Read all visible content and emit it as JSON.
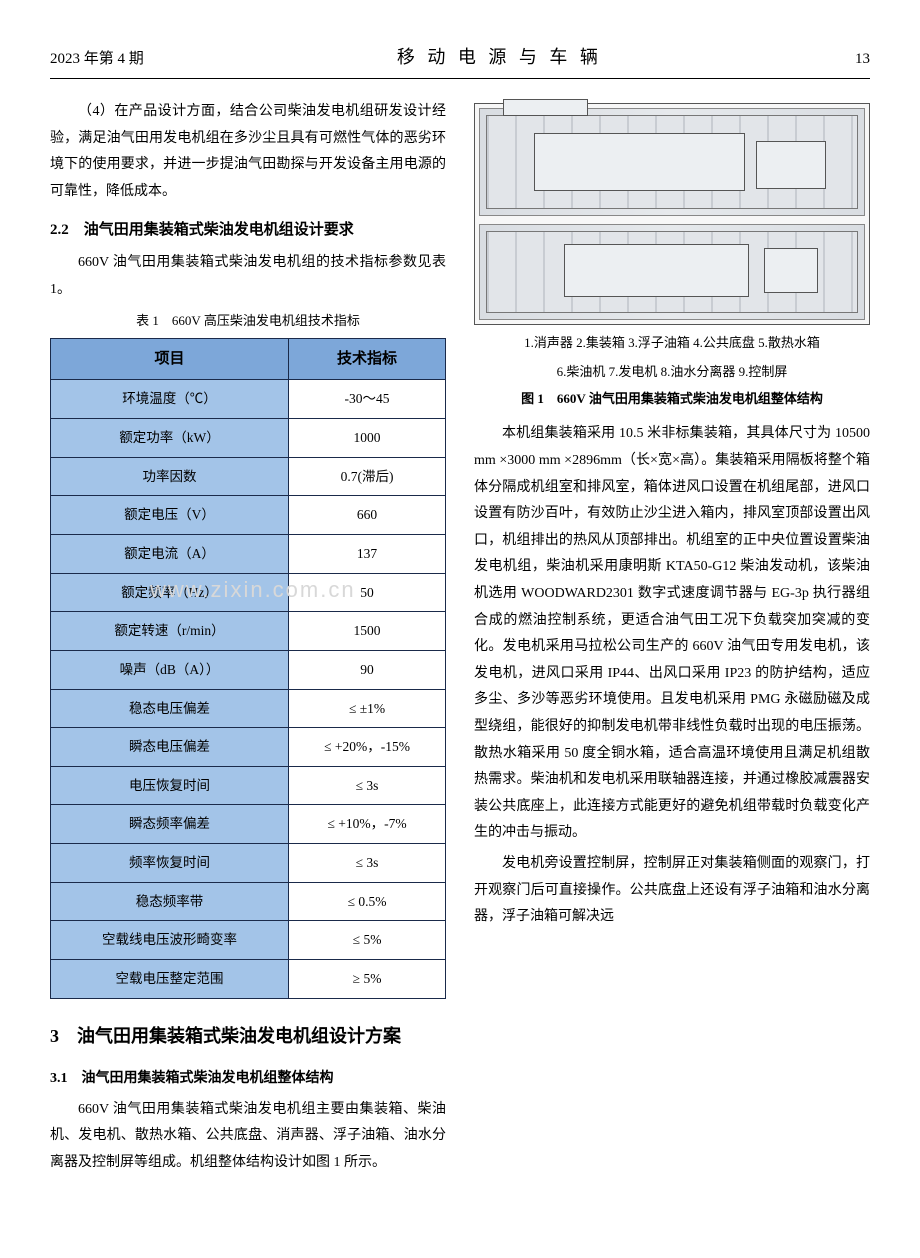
{
  "header": {
    "issue": "2023 年第 4 期",
    "journal": "移 动 电 源 与 车 辆",
    "page": "13"
  },
  "left": {
    "para4": "（4）在产品设计方面，结合公司柴油发电机组研发设计经验，满足油气田用发电机组在多沙尘且具有可燃性气体的恶劣环境下的使用要求，并进一步提油气田勘探与开发设备主用电源的可靠性，降低成本。",
    "h22": "2.2　油气田用集装箱式柴油发电机组设计要求",
    "para22": "660V 油气田用集装箱式柴油发电机组的技术指标参数见表 1。",
    "tableCaption": "表 1　660V 高压柴油发电机组技术指标",
    "table": {
      "head": [
        "项目",
        "技术指标"
      ],
      "rows": [
        [
          "环境温度（℃）",
          "-30～45"
        ],
        [
          "额定功率（kW）",
          "1000"
        ],
        [
          "功率因数",
          "0.7(滞后)"
        ],
        [
          "额定电压（V）",
          "660"
        ],
        [
          "额定电流（A）",
          "137"
        ],
        [
          "额定频率（Hz）",
          "50"
        ],
        [
          "额定转速（r/min）",
          "1500"
        ],
        [
          "噪声（dB（A））",
          "90"
        ],
        [
          "稳态电压偏差",
          "≤ ±1%"
        ],
        [
          "瞬态电压偏差",
          "≤ +20%，-15%"
        ],
        [
          "电压恢复时间",
          "≤ 3s"
        ],
        [
          "瞬态频率偏差",
          "≤ +10%，-7%"
        ],
        [
          "频率恢复时间",
          "≤ 3s"
        ],
        [
          "稳态频率带",
          "≤ 0.5%"
        ],
        [
          "空载线电压波形畸变率",
          "≤ 5%"
        ],
        [
          "空载电压整定范围",
          "≥ 5%"
        ]
      ],
      "headerBg": "#7da7d9",
      "labelBg": "#a3c4e8",
      "valueBg": "#ffffff",
      "borderColor": "#1a2a4a"
    },
    "h3": "3　油气田用集装箱式柴油发电机组设计方案",
    "h31": "3.1　油气田用集装箱式柴油发电机组整体结构",
    "para31": "660V 油气田用集装箱式柴油发电机组主要由集装箱、柴油机、发电机、散热水箱、公共底盘、消声器、浮子油箱、油水分离器及控制屏等组成。机组整体结构设计如图 1 所示。",
    "watermark": "www.zixin.com.cn"
  },
  "right": {
    "figLegend1": "1.消声器  2.集装箱  3.浮子油箱  4.公共底盘  5.散热水箱",
    "figLegend2": "6.柴油机  7.发电机  8.油水分离器  9.控制屏",
    "figCaption": "图 1　660V 油气田用集装箱式柴油发电机组整体结构",
    "paraA": "本机组集装箱采用 10.5 米非标集装箱，其具体尺寸为 10500 mm ×3000 mm ×2896mm（长×宽×高）。集装箱采用隔板将整个箱体分隔成机组室和排风室，箱体进风口设置在机组尾部，进风口设置有防沙百叶，有效防止沙尘进入箱内，排风室顶部设置出风口，机组排出的热风从顶部排出。机组室的正中央位置设置柴油发电机组，柴油机采用康明斯 KTA50-G12 柴油发动机，该柴油机选用 WOODWARD2301 数字式速度调节器与 EG-3p 执行器组合成的燃油控制系统，更适合油气田工况下负载突加突减的变化。发电机采用马拉松公司生产的 660V 油气田专用发电机，该发电机，进风口采用 IP44、出风口采用 IP23 的防护结构，适应多尘、多沙等恶劣环境使用。且发电机采用 PMG 永磁励磁及成型绕组，能很好的抑制发电机带非线性负载时出现的电压振荡。散热水箱采用 50 度全铜水箱，适合高温环境使用且满足机组散热需求。柴油机和发电机采用联轴器连接，并通过橡胶减震器安装公共底座上，此连接方式能更好的避免机组带载时负载变化产生的冲击与振动。",
    "paraB": "发电机旁设置控制屏，控制屏正对集装箱侧面的观察门，打开观察门后可直接操作。公共底盘上还设有浮子油箱和油水分离器，浮子油箱可解决远"
  },
  "style": {
    "pageWidth": 920,
    "pageHeight": 1258,
    "background": "#ffffff",
    "textColor": "#000000",
    "baseFontSize": 14
  }
}
